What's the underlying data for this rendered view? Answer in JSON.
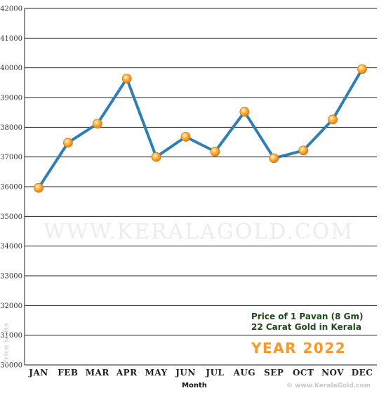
{
  "chart_data": {
    "type": "line",
    "categories": [
      "JAN",
      "FEB",
      "MAR",
      "APR",
      "MAY",
      "JUN",
      "JUL",
      "AUG",
      "SEP",
      "OCT",
      "NOV",
      "DEC"
    ],
    "series": [
      {
        "values": [
          35960,
          37480,
          38120,
          39640,
          37000,
          37680,
          37180,
          38520,
          36960,
          37220,
          38260,
          39960
        ]
      }
    ],
    "y_ticks": [
      30000,
      31000,
      32000,
      33000,
      34000,
      35000,
      36000,
      37000,
      38000,
      39000,
      40000,
      41000,
      42000
    ],
    "ylim": [
      30000,
      42000
    ],
    "xlabel": "Month",
    "ylabel": "Price in Rs",
    "grid": true,
    "annotations": {
      "note_line1": "Price of 1 Pavan (8 Gm)",
      "note_line2": "22 Carat Gold in Kerala",
      "year": "YEAR 2022",
      "watermark": "WWW.KERALAGOLD.COM",
      "credit": "© www.KeralaGold.com"
    },
    "colors": {
      "line": "#2f7fb4",
      "marker": "#f7a030",
      "grid": "#222222",
      "year": "#f39a2a",
      "note": "#1e4a1c"
    }
  }
}
